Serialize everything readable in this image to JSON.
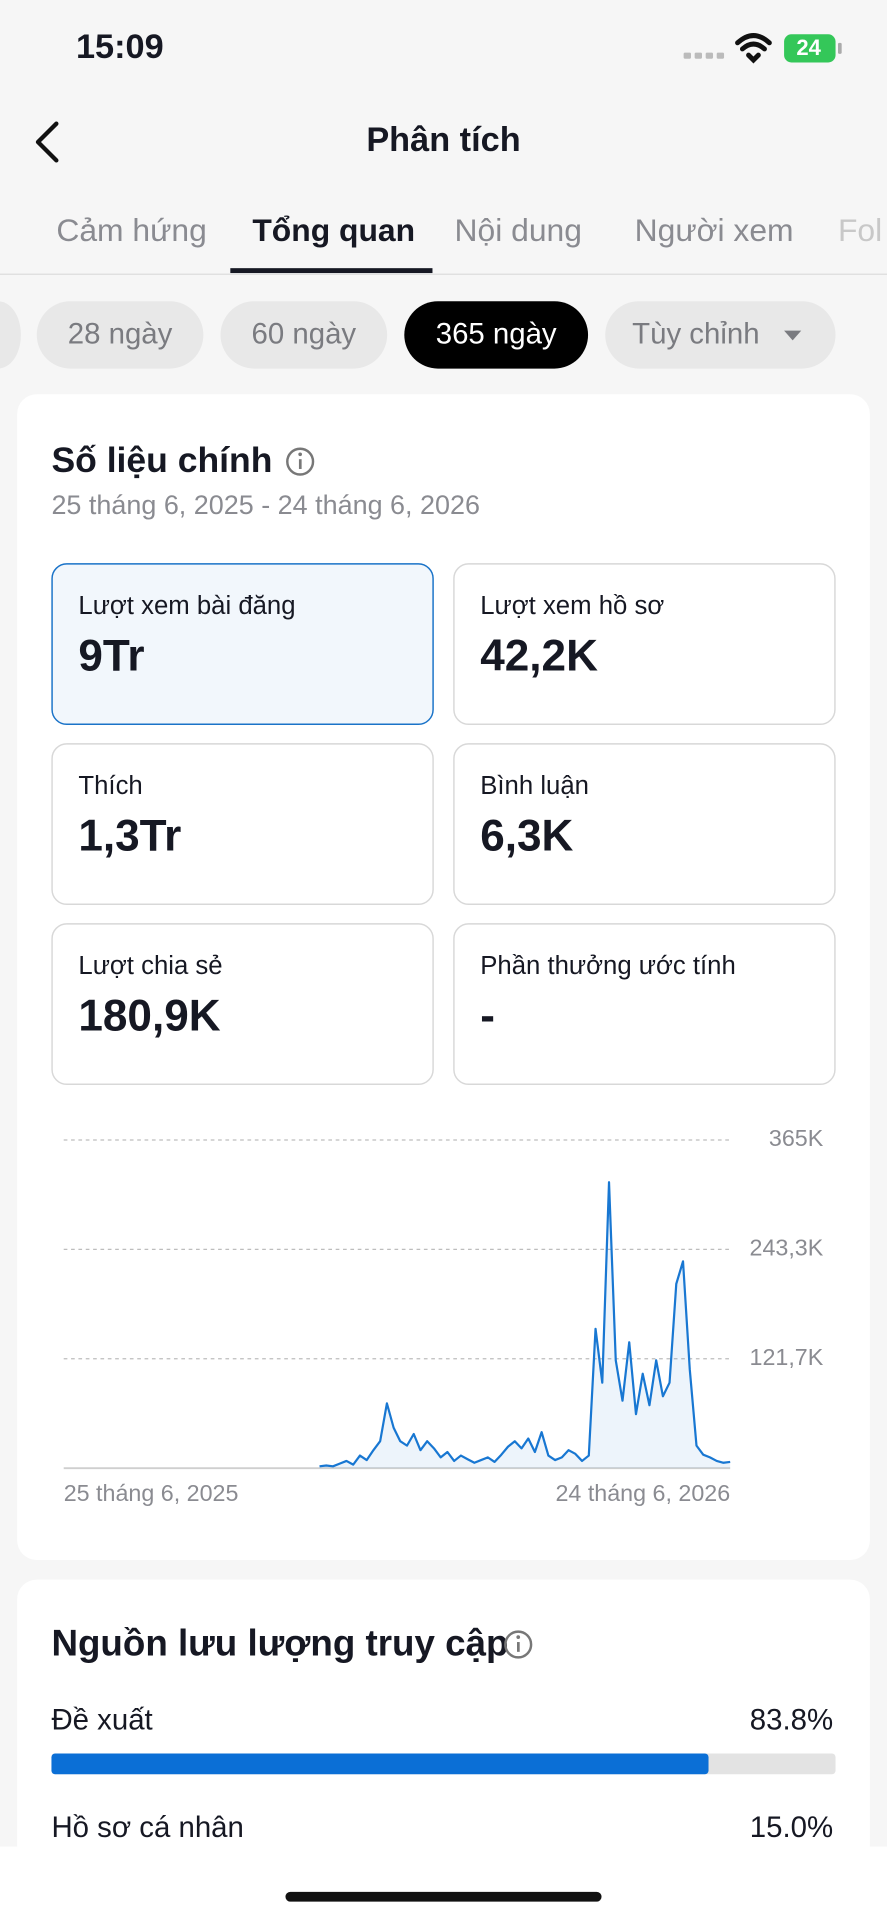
{
  "status_bar": {
    "time": "15:09",
    "battery": "24"
  },
  "header": {
    "title": "Phân tích"
  },
  "tabs": [
    "Cảm hứng",
    "Tổng quan",
    "Nội dung",
    "Người xem",
    "Fol"
  ],
  "period_chips": [
    "28 ngày",
    "60 ngày",
    "365 ngày",
    "Tùy chỉnh"
  ],
  "key_metrics": {
    "title": "Số liệu chính",
    "date_range": "25 tháng 6, 2025 - 24 tháng 6, 2026",
    "cards": [
      {
        "label": "Lượt xem bài đăng",
        "value": "9Tr"
      },
      {
        "label": "Lượt xem hồ sơ",
        "value": "42,2K"
      },
      {
        "label": "Thích",
        "value": "1,3Tr"
      },
      {
        "label": "Bình luận",
        "value": "6,3K"
      },
      {
        "label": "Lượt chia sẻ",
        "value": "180,9K"
      },
      {
        "label": "Phần thưởng ước tính",
        "value": "-"
      }
    ]
  },
  "chart_data": {
    "type": "line",
    "color": "#1877d2",
    "categories": [
      "25 tháng 6, 2025",
      null,
      null,
      null,
      null,
      null,
      null,
      null,
      null,
      null,
      null,
      null,
      null,
      null,
      null,
      null,
      null,
      null,
      null,
      null,
      null,
      null,
      null,
      null,
      null,
      null,
      null,
      null,
      null,
      null,
      null,
      null,
      null,
      null,
      null,
      null,
      null,
      null,
      null,
      null,
      null,
      null,
      null,
      null,
      null,
      null,
      null,
      null,
      null,
      null,
      null,
      null,
      null,
      null,
      null,
      null,
      null,
      null,
      null,
      null,
      null,
      null,
      null,
      null,
      null,
      null,
      null,
      null,
      null,
      null,
      null,
      null,
      null,
      null,
      null,
      null,
      null,
      null,
      null,
      null,
      null,
      null,
      null,
      null,
      null,
      null,
      null,
      null,
      null,
      null,
      null,
      null,
      null,
      null,
      null,
      null,
      null,
      null,
      null,
      "24 tháng 6, 2026"
    ],
    "values": [
      null,
      null,
      null,
      null,
      null,
      null,
      null,
      null,
      null,
      null,
      null,
      null,
      null,
      null,
      null,
      null,
      null,
      null,
      null,
      null,
      null,
      null,
      null,
      null,
      null,
      null,
      null,
      null,
      null,
      null,
      null,
      null,
      null,
      null,
      null,
      null,
      null,
      null,
      2000,
      3000,
      2000,
      5000,
      8000,
      4000,
      14000,
      9000,
      20000,
      30000,
      72000,
      45000,
      30000,
      25000,
      38000,
      20000,
      30000,
      22000,
      12000,
      18000,
      8000,
      14000,
      10000,
      6000,
      9000,
      12000,
      7000,
      15000,
      24000,
      30000,
      22000,
      33000,
      18000,
      40000,
      14000,
      9000,
      12000,
      20000,
      16000,
      8000,
      14000,
      155000,
      95000,
      318000,
      120000,
      75000,
      140000,
      60000,
      105000,
      70000,
      120000,
      80000,
      95000,
      205000,
      230000,
      110000,
      25000,
      15000,
      12000,
      8000,
      6000,
      7000
    ],
    "ylim": [
      0,
      365000
    ],
    "yticks": [
      {
        "value": 121700,
        "label": "121,7K"
      },
      {
        "value": 243300,
        "label": "243,3K"
      },
      {
        "value": 365000,
        "label": "365K"
      }
    ],
    "grid": true
  },
  "traffic_sources": {
    "title": "Nguồn lưu lượng truy cập",
    "rows": [
      {
        "label": "Đề xuất",
        "value": 83.8,
        "value_label": "83.8%"
      },
      {
        "label": "Hồ sơ cá nhân",
        "value": 15.0,
        "value_label": "15.0%"
      }
    ]
  }
}
